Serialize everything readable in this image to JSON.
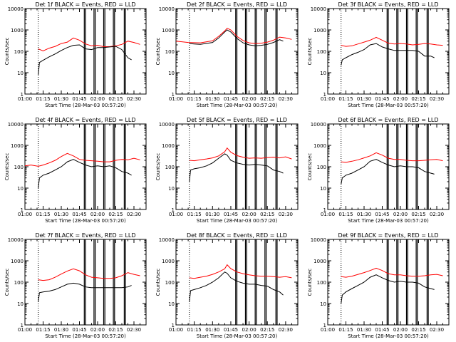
{
  "colors": {
    "events": "#000000",
    "lld": "#ff0000",
    "axis": "#000000"
  },
  "chart_data": [
    {
      "type": "line",
      "title": "Det 1f BLACK = Events, RED = LLD",
      "xlabel": "Start Time (28-Mar-03 00:57:20)",
      "ylabel": "Counts/sec",
      "xticks": [
        "01:00",
        "01:15",
        "01:30",
        "01:45",
        "02:00",
        "02:15",
        "02:30"
      ],
      "yticks": [
        "1",
        "10",
        "100",
        "1000",
        "10000"
      ],
      "yscale": "log",
      "ylim": [
        1,
        10000
      ],
      "xlim_minutes": [
        0,
        100
      ],
      "series": [
        {
          "color": "red",
          "x": [
            11,
            15,
            20,
            25,
            30,
            35,
            40,
            45,
            50,
            55,
            60,
            65,
            70,
            75,
            80,
            85,
            90,
            95
          ],
          "y": [
            130,
            105,
            140,
            170,
            230,
            270,
            420,
            330,
            220,
            180,
            190,
            165,
            165,
            180,
            210,
            300,
            260,
            210
          ]
        },
        {
          "color": "black",
          "x": [
            11,
            12,
            15,
            20,
            25,
            30,
            35,
            40,
            45,
            50,
            55,
            60,
            65,
            70,
            75,
            80,
            85,
            88
          ],
          "y": [
            8,
            30,
            38,
            55,
            75,
            110,
            150,
            190,
            200,
            130,
            120,
            150,
            150,
            160,
            170,
            120,
            50,
            40
          ]
        }
      ]
    },
    {
      "type": "line",
      "title": "Det 2f BLACK = Events, RED = LLD",
      "xlabel": "Start Time (28-Mar-03 00:57:20)",
      "ylabel": "Counts/sec",
      "xticks": [
        "01:00",
        "01:15",
        "01:30",
        "01:45",
        "02:00",
        "02:15",
        "02:30"
      ],
      "yticks": [
        "1",
        "10",
        "100",
        "1000",
        "10000"
      ],
      "yscale": "log",
      "ylim": [
        1,
        10000
      ],
      "xlim_minutes": [
        0,
        100
      ],
      "series": [
        {
          "color": "red",
          "x": [
            0,
            10,
            20,
            30,
            35,
            40,
            42,
            45,
            50,
            55,
            60,
            65,
            70,
            75,
            80,
            85,
            90,
            95
          ],
          "y": [
            300,
            260,
            250,
            310,
            500,
            900,
            1200,
            1000,
            500,
            320,
            250,
            230,
            240,
            270,
            330,
            460,
            420,
            360
          ]
        },
        {
          "color": "black",
          "x": [
            11,
            15,
            20,
            30,
            35,
            40,
            42,
            45,
            50,
            55,
            60,
            65,
            70,
            75,
            80,
            85,
            88
          ],
          "y": [
            230,
            220,
            210,
            260,
            420,
            800,
            1000,
            800,
            400,
            250,
            200,
            180,
            190,
            210,
            260,
            350,
            300
          ]
        }
      ]
    },
    {
      "type": "line",
      "title": "Det 3f BLACK = Events, RED = LLD",
      "xlabel": "Start Time (28-Mar-03 00:57:20)",
      "ylabel": "Counts/sec",
      "xticks": [
        "01:00",
        "01:15",
        "01:30",
        "01:45",
        "02:00",
        "02:15",
        "02:30"
      ],
      "yticks": [
        "1",
        "10",
        "100",
        "1000",
        "10000"
      ],
      "yscale": "log",
      "ylim": [
        1,
        10000
      ],
      "xlim_minutes": [
        0,
        100
      ],
      "series": [
        {
          "color": "red",
          "x": [
            11,
            15,
            20,
            25,
            30,
            35,
            40,
            45,
            50,
            55,
            60,
            65,
            70,
            75,
            80,
            85,
            90,
            95
          ],
          "y": [
            190,
            170,
            180,
            220,
            270,
            330,
            450,
            330,
            240,
            220,
            230,
            220,
            200,
            210,
            230,
            220,
            200,
            190
          ]
        },
        {
          "color": "black",
          "x": [
            11,
            12,
            15,
            20,
            25,
            30,
            35,
            40,
            45,
            50,
            55,
            60,
            65,
            70,
            75,
            80,
            85,
            88
          ],
          "y": [
            22,
            40,
            50,
            70,
            90,
            120,
            200,
            230,
            160,
            130,
            110,
            110,
            110,
            110,
            100,
            60,
            60,
            50
          ]
        }
      ]
    },
    {
      "type": "line",
      "title": "Det 4f BLACK = Events, RED = LLD",
      "xlabel": "Start Time (28-Mar-03 00:57:20)",
      "ylabel": "Counts/sec",
      "xticks": [
        "01:00",
        "01:15",
        "01:30",
        "01:45",
        "02:00",
        "02:15",
        "02:30"
      ],
      "yticks": [
        "1",
        "10",
        "100",
        "1000",
        "10000"
      ],
      "yscale": "log",
      "ylim": [
        1,
        10000
      ],
      "xlim_minutes": [
        0,
        100
      ],
      "series": [
        {
          "color": "red",
          "x": [
            0,
            5,
            11,
            15,
            20,
            25,
            30,
            35,
            40,
            45,
            50,
            55,
            60,
            65,
            70,
            75,
            80,
            85,
            90,
            95
          ],
          "y": [
            110,
            120,
            105,
            120,
            150,
            200,
            300,
            420,
            320,
            220,
            200,
            190,
            180,
            170,
            170,
            200,
            220,
            210,
            250,
            210
          ]
        },
        {
          "color": "black",
          "x": [
            11,
            12,
            15,
            20,
            25,
            30,
            35,
            40,
            45,
            50,
            55,
            60,
            65,
            70,
            75,
            80,
            85,
            88
          ],
          "y": [
            10,
            30,
            40,
            50,
            70,
            100,
            170,
            220,
            160,
            120,
            100,
            110,
            100,
            110,
            90,
            60,
            50,
            40
          ]
        }
      ]
    },
    {
      "type": "line",
      "title": "Det 5f BLACK = Events, RED = LLD",
      "xlabel": "Start Time (28-Mar-03 00:57:20)",
      "ylabel": "Counts/sec",
      "xticks": [
        "01:00",
        "01:15",
        "01:30",
        "01:45",
        "02:00",
        "02:15",
        "02:30"
      ],
      "yticks": [
        "1",
        "10",
        "100",
        "1000",
        "10000"
      ],
      "yscale": "log",
      "ylim": [
        1,
        10000
      ],
      "xlim_minutes": [
        0,
        100
      ],
      "series": [
        {
          "color": "red",
          "x": [
            11,
            15,
            20,
            25,
            30,
            35,
            40,
            42,
            45,
            50,
            55,
            60,
            65,
            70,
            75,
            80,
            85,
            90,
            95
          ],
          "y": [
            200,
            190,
            210,
            230,
            260,
            320,
            500,
            750,
            480,
            330,
            280,
            250,
            260,
            250,
            270,
            280,
            260,
            290,
            230
          ]
        },
        {
          "color": "black",
          "x": [
            11,
            12,
            15,
            20,
            25,
            30,
            35,
            40,
            42,
            45,
            50,
            55,
            60,
            65,
            70,
            75,
            80,
            85,
            88
          ],
          "y": [
            20,
            70,
            80,
            90,
            110,
            150,
            250,
            400,
            350,
            200,
            150,
            130,
            120,
            130,
            120,
            110,
            70,
            60,
            50
          ]
        }
      ]
    },
    {
      "type": "line",
      "title": "Det 6f BLACK = Events, RED = LLD",
      "xlabel": "Start Time (28-Mar-03 00:57:20)",
      "ylabel": "Counts/sec",
      "xticks": [
        "01:00",
        "01:15",
        "01:30",
        "01:45",
        "02:00",
        "02:15",
        "02:30"
      ],
      "yticks": [
        "1",
        "10",
        "100",
        "1000",
        "10000"
      ],
      "yscale": "log",
      "ylim": [
        1,
        10000
      ],
      "xlim_minutes": [
        0,
        100
      ],
      "series": [
        {
          "color": "red",
          "x": [
            11,
            15,
            20,
            25,
            30,
            35,
            40,
            45,
            50,
            55,
            60,
            65,
            70,
            75,
            80,
            85,
            90,
            95
          ],
          "y": [
            170,
            160,
            180,
            210,
            260,
            320,
            450,
            350,
            250,
            220,
            220,
            200,
            190,
            190,
            200,
            210,
            220,
            190
          ]
        },
        {
          "color": "black",
          "x": [
            11,
            12,
            15,
            20,
            25,
            30,
            35,
            40,
            45,
            50,
            55,
            60,
            65,
            70,
            75,
            80,
            85,
            88
          ],
          "y": [
            15,
            30,
            40,
            50,
            70,
            100,
            180,
            220,
            160,
            120,
            100,
            110,
            100,
            100,
            90,
            60,
            50,
            45
          ]
        }
      ]
    },
    {
      "type": "line",
      "title": "Det 7f BLACK = Events, RED = LLD",
      "xlabel": "Start Time (28-Mar-03 00:57:20)",
      "ylabel": "Counts/sec",
      "xticks": [
        "01:00",
        "01:15",
        "01:30",
        "01:45",
        "02:00",
        "02:15",
        "02:30"
      ],
      "yticks": [
        "1",
        "10",
        "100",
        "1000",
        "10000"
      ],
      "yscale": "log",
      "ylim": [
        1,
        10000
      ],
      "xlim_minutes": [
        0,
        100
      ],
      "series": [
        {
          "color": "red",
          "x": [
            11,
            15,
            20,
            25,
            30,
            35,
            40,
            45,
            50,
            55,
            60,
            65,
            70,
            75,
            80,
            85,
            90,
            95
          ],
          "y": [
            130,
            120,
            130,
            170,
            240,
            330,
            420,
            340,
            220,
            170,
            160,
            150,
            150,
            160,
            200,
            280,
            230,
            200
          ]
        },
        {
          "color": "black",
          "x": [
            11,
            12,
            15,
            20,
            25,
            30,
            35,
            40,
            45,
            50,
            55,
            60,
            65,
            70,
            75,
            80,
            85,
            88
          ],
          "y": [
            12,
            32,
            35,
            38,
            45,
            60,
            80,
            90,
            80,
            60,
            55,
            55,
            55,
            55,
            55,
            55,
            60,
            70
          ]
        }
      ]
    },
    {
      "type": "line",
      "title": "Det 8f BLACK = Events, RED = LLD",
      "xlabel": "Start Time (28-Mar-03 00:57:20)",
      "ylabel": "Counts/sec",
      "xticks": [
        "01:00",
        "01:15",
        "01:30",
        "01:45",
        "02:00",
        "02:15",
        "02:30"
      ],
      "yticks": [
        "1",
        "10",
        "100",
        "1000",
        "10000"
      ],
      "yscale": "log",
      "ylim": [
        1,
        10000
      ],
      "xlim_minutes": [
        0,
        100
      ],
      "series": [
        {
          "color": "red",
          "x": [
            11,
            15,
            20,
            25,
            30,
            35,
            40,
            42,
            45,
            50,
            55,
            60,
            65,
            70,
            75,
            80,
            85,
            90,
            95
          ],
          "y": [
            160,
            150,
            170,
            190,
            230,
            300,
            420,
            650,
            430,
            300,
            250,
            220,
            200,
            190,
            190,
            180,
            170,
            180,
            160
          ]
        },
        {
          "color": "black",
          "x": [
            11,
            12,
            15,
            20,
            25,
            30,
            35,
            40,
            42,
            45,
            50,
            55,
            60,
            65,
            70,
            75,
            80,
            85,
            88
          ],
          "y": [
            12,
            40,
            45,
            55,
            70,
            100,
            160,
            300,
            260,
            160,
            110,
            90,
            80,
            80,
            70,
            65,
            45,
            35,
            25
          ]
        }
      ]
    },
    {
      "type": "line",
      "title": "Det 9f BLACK = Events, RED = LLD",
      "xlabel": "Start Time (28-Mar-03 00:57:20)",
      "ylabel": "Counts/sec",
      "xticks": [
        "01:00",
        "01:15",
        "01:30",
        "01:45",
        "02:00",
        "02:15",
        "02:30"
      ],
      "yticks": [
        "1",
        "10",
        "100",
        "1000",
        "10000"
      ],
      "yscale": "log",
      "ylim": [
        1,
        10000
      ],
      "xlim_minutes": [
        0,
        100
      ],
      "series": [
        {
          "color": "red",
          "x": [
            11,
            15,
            20,
            25,
            30,
            35,
            40,
            45,
            50,
            55,
            60,
            65,
            70,
            75,
            80,
            85,
            90,
            95
          ],
          "y": [
            180,
            170,
            190,
            230,
            280,
            350,
            450,
            350,
            250,
            220,
            220,
            200,
            190,
            190,
            200,
            220,
            230,
            200
          ]
        },
        {
          "color": "black",
          "x": [
            11,
            12,
            15,
            20,
            25,
            30,
            35,
            40,
            45,
            50,
            55,
            60,
            65,
            70,
            75,
            80,
            85,
            88
          ],
          "y": [
            10,
            25,
            35,
            50,
            70,
            100,
            170,
            220,
            160,
            120,
            100,
            110,
            100,
            100,
            90,
            60,
            50,
            45
          ]
        }
      ]
    }
  ]
}
